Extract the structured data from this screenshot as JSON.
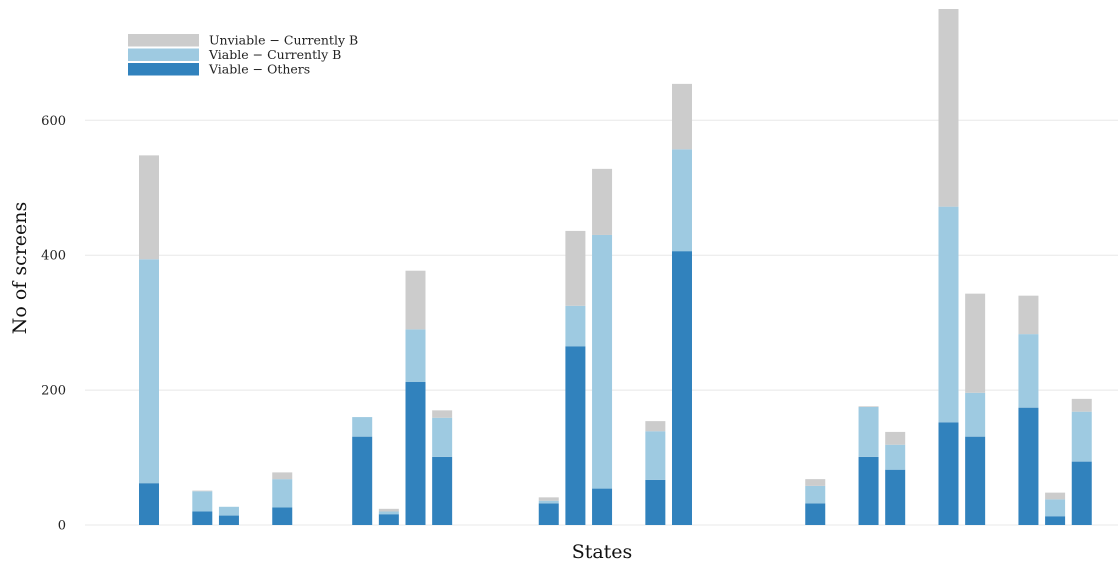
{
  "chart_data": {
    "type": "bar",
    "stacked": true,
    "xlabel": "States",
    "ylabel": "No of screens",
    "ylim": [
      0,
      765
    ],
    "yticks": [
      0,
      200,
      400,
      600
    ],
    "grid": true,
    "legend_position": "top-left",
    "series": [
      {
        "name": "Viable − Others",
        "color": "#3182bd",
        "values": [
          62,
          0,
          20,
          14,
          0,
          26,
          0,
          0,
          131,
          16,
          212,
          101,
          0,
          0,
          0,
          32,
          265,
          54,
          0,
          67,
          406,
          0,
          0,
          0,
          0,
          32,
          0,
          101,
          82,
          0,
          152,
          131,
          0,
          174,
          13,
          94
        ]
      },
      {
        "name": "Viable − Currently B",
        "color": "#9ecae1",
        "values": [
          332,
          0,
          30,
          13,
          0,
          42,
          0,
          0,
          29,
          4,
          78,
          58,
          0,
          0,
          0,
          4,
          60,
          376,
          0,
          72,
          151,
          0,
          0,
          0,
          0,
          26,
          0,
          74,
          37,
          0,
          320,
          65,
          0,
          109,
          25,
          74
        ]
      },
      {
        "name": "Unviable − Currently B",
        "color": "#cccccc",
        "values": [
          154,
          0,
          1,
          0,
          0,
          10,
          0,
          0,
          0,
          4,
          87,
          11,
          0,
          0,
          0,
          5,
          111,
          98,
          0,
          15,
          97,
          0,
          0,
          0,
          0,
          10,
          0,
          1,
          19,
          0,
          293,
          147,
          0,
          57,
          10,
          19
        ]
      }
    ]
  }
}
